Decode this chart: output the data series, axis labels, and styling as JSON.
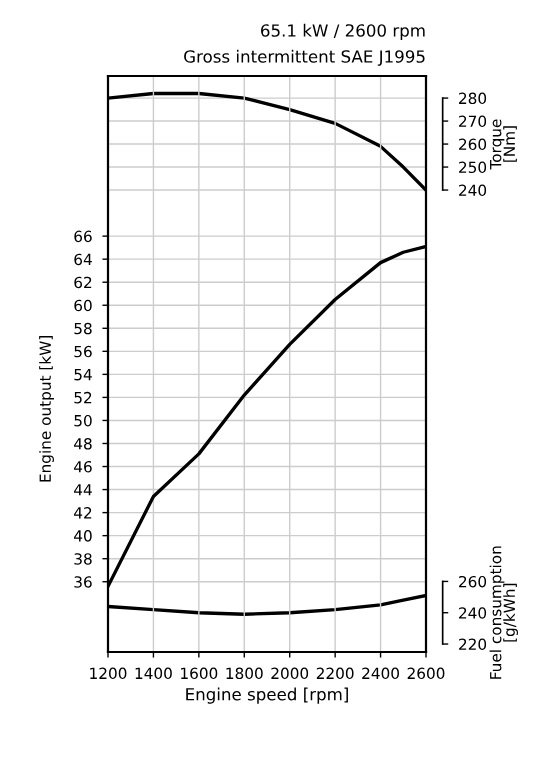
{
  "chart_data": {
    "type": "line",
    "title": "65.1 kW / 2600 rpm",
    "subtitle": "Gross intermittent SAE J1995",
    "xlabel": "Engine speed [rpm]",
    "ylabel": "Engine output [kW]",
    "y2label": "Torque\n[Nm]",
    "y3label": "Fuel consumption\n[g/kWh]",
    "x": [
      1200,
      1400,
      1600,
      1800,
      2000,
      2200,
      2400,
      2500,
      2600
    ],
    "series": [
      {
        "color": "#000000",
        "values": [
          35.6,
          43.4,
          47.1,
          52.2,
          56.6,
          60.5,
          63.7,
          64.6,
          65.1
        ]
      },
      {
        "color": "#000000",
        "axis": "y2",
        "values": [
          280,
          282,
          282,
          280,
          275,
          269,
          259,
          250,
          240
        ]
      },
      {
        "color": "#000000",
        "axis": "y3",
        "values": [
          244,
          242,
          240,
          239,
          240,
          242,
          245,
          248,
          251
        ]
      }
    ],
    "xlim": [
      1200,
      2600
    ],
    "xticks": [
      1200,
      1400,
      1600,
      1800,
      2000,
      2200,
      2400,
      2600
    ],
    "ylim": [
      29.9,
      79.9
    ],
    "yticks": [
      36,
      38,
      40,
      42,
      44,
      46,
      48,
      50,
      52,
      54,
      56,
      58,
      60,
      62,
      64,
      66
    ],
    "y2lim": [
      39.1,
      289.6
    ],
    "y2ticks": [
      240,
      250,
      260,
      270,
      280
    ],
    "y3lim": [
      214.9,
      583
    ],
    "y3ticks": [
      220,
      240,
      260
    ],
    "grid": true,
    "marker": "none",
    "line_style": "solid"
  }
}
